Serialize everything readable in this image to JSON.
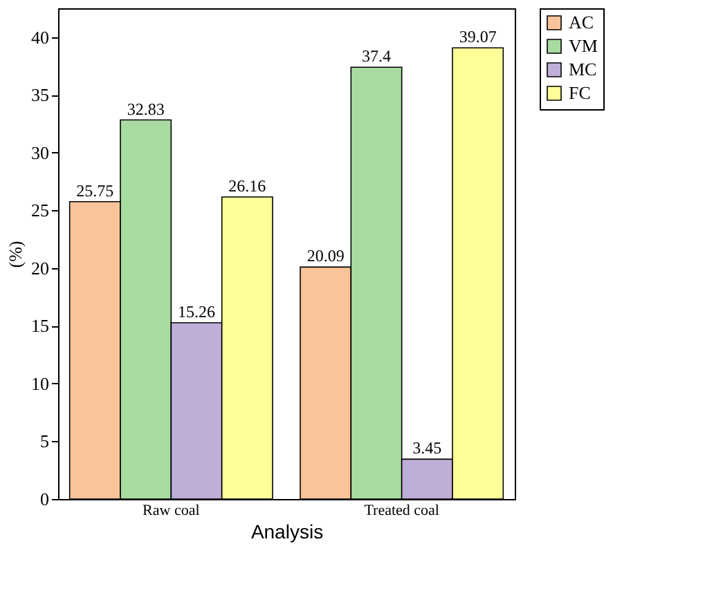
{
  "chart_data": {
    "type": "bar",
    "xlabel": "Analysis",
    "ylabel": "(%)",
    "categories": [
      "Raw coal",
      "Treated coal"
    ],
    "series": [
      {
        "name": "AC",
        "color": "#f9c49a",
        "values": [
          25.75,
          20.09
        ]
      },
      {
        "name": "VM",
        "color": "#a8dba0",
        "values": [
          32.83,
          37.4
        ]
      },
      {
        "name": "MC",
        "color": "#bfaed8",
        "values": [
          15.26,
          3.45
        ]
      },
      {
        "name": "FC",
        "color": "#ffff99",
        "values": [
          26.16,
          39.07
        ]
      }
    ],
    "ylim": [
      0,
      42.5
    ],
    "yticks": [
      0,
      5,
      10,
      15,
      20,
      25,
      30,
      35,
      40
    ],
    "data_labels": true,
    "legend": "top right",
    "grid": false
  }
}
